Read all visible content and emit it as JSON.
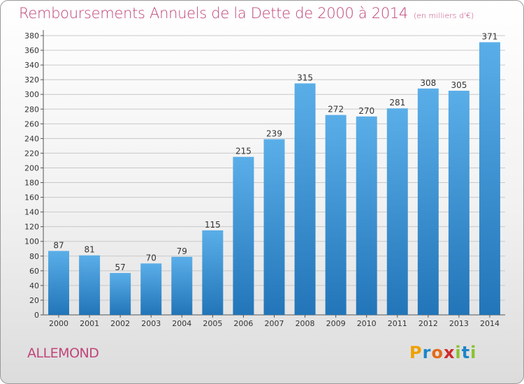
{
  "chart_data": {
    "type": "bar",
    "title": "Remboursements Annuels de la Dette de 2000 à 2014",
    "subtitle": "(en milliers d'€)",
    "categories": [
      "2000",
      "2001",
      "2002",
      "2003",
      "2004",
      "2005",
      "2006",
      "2007",
      "2008",
      "2009",
      "2010",
      "2011",
      "2012",
      "2013",
      "2014"
    ],
    "values": [
      87,
      81,
      57,
      70,
      79,
      115,
      215,
      239,
      315,
      272,
      270,
      281,
      308,
      305,
      371
    ],
    "xlabel": "",
    "ylabel": "",
    "ylim": [
      0,
      380
    ],
    "ytick_step": 20,
    "grid": true,
    "bar_color_top": "#5aaee8",
    "bar_color_bottom": "#2275b8",
    "gridline_color": "#c8c8c8"
  },
  "commune": "ALLEMOND",
  "logo": {
    "letters": [
      "P",
      "r",
      "o",
      "x",
      "i",
      "t",
      "i"
    ],
    "text": "Proxiti"
  },
  "colors": {
    "title": "#c0457a",
    "commune": "#c0457a"
  }
}
